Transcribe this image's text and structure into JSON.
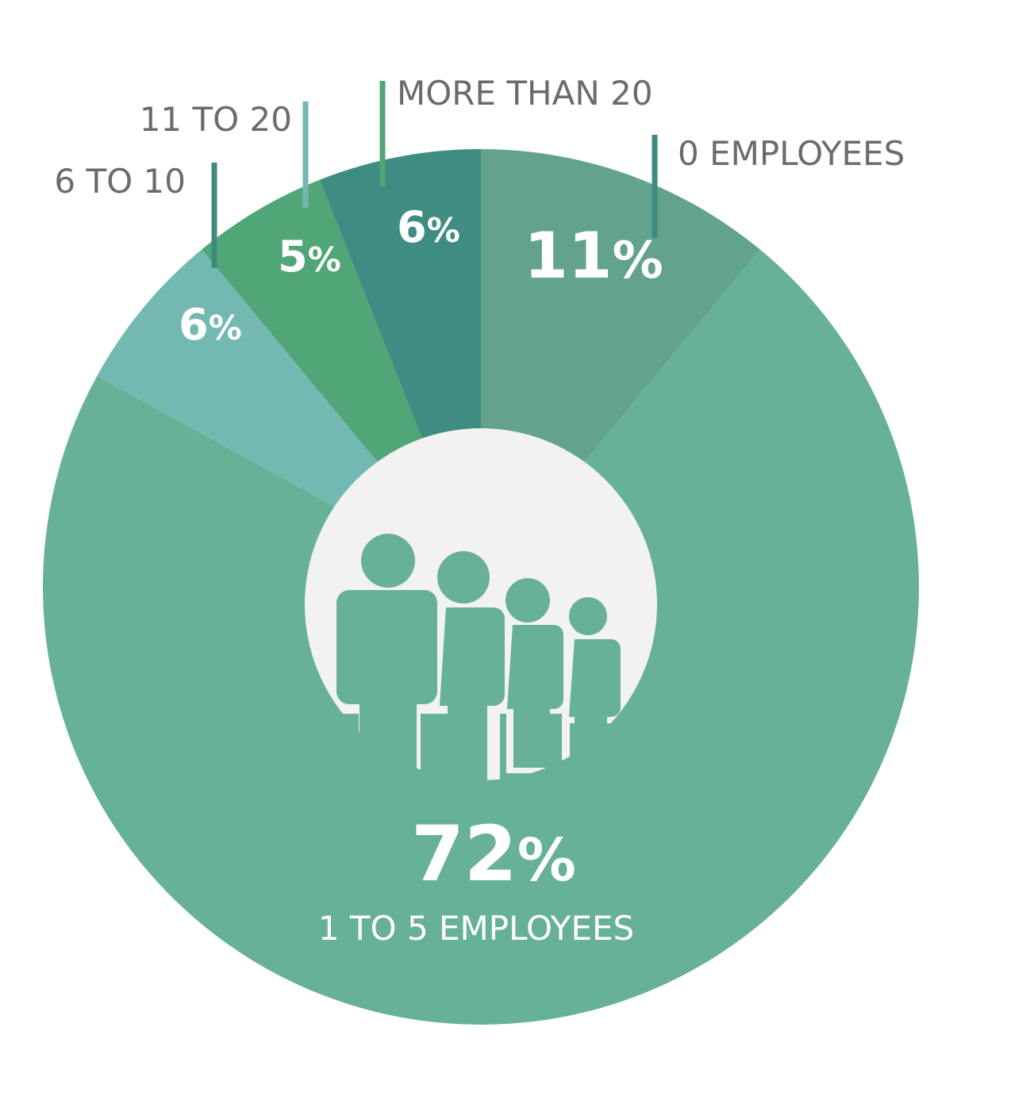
{
  "chart_data": {
    "type": "pie",
    "slices": [
      {
        "label": "0 EMPLOYEES",
        "value": 11,
        "value_text": "11",
        "unit": "%",
        "color": "#63a38d",
        "leader_color": "#3e8b7e"
      },
      {
        "label": "1 TO 5 EMPLOYEES",
        "value": 72,
        "value_text": "72",
        "unit": "%",
        "color": "#67b196"
      },
      {
        "label": "6 TO 10",
        "value": 6,
        "value_text": "6",
        "unit": "%",
        "color": "#74b9b1",
        "leader_color": "#3e8b7e"
      },
      {
        "label": "11 TO 20",
        "value": 5,
        "value_text": "5",
        "unit": "%",
        "color": "#50a676",
        "leader_color": "#74b9b1"
      },
      {
        "label": "MORE THAN 20",
        "value": 6,
        "value_text": "6",
        "unit": "%",
        "color": "#3f8d82",
        "leader_color": "#50a676"
      }
    ],
    "center_icon": "people-group-icon",
    "center_color": "#f2f2f2"
  }
}
